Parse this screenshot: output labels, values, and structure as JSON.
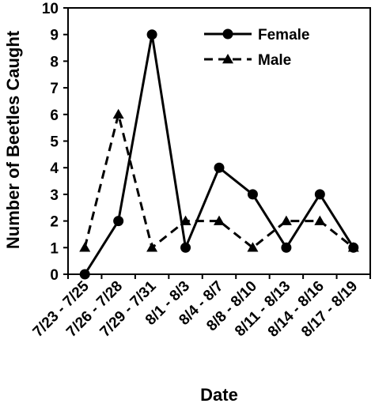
{
  "chart_data": {
    "type": "line",
    "title": "",
    "xlabel": "Date",
    "ylabel": "Number of Beetles Caught",
    "ylim": [
      0,
      10
    ],
    "yticks": [
      0,
      1,
      2,
      3,
      4,
      5,
      6,
      7,
      8,
      9,
      10
    ],
    "categories": [
      "7/23 - 7/25",
      "7/26 - 7/28",
      "7/29 - 7/31",
      "8/1 - 8/3",
      "8/4 - 8/7",
      "8/8 - 8/10",
      "8/11 - 8/13",
      "8/14 - 8/16",
      "8/17 - 8/19"
    ],
    "series": [
      {
        "name": "Female",
        "values": [
          0,
          2,
          9,
          1,
          4,
          3,
          1,
          3,
          1
        ],
        "line_style": "solid",
        "marker": "circle",
        "color": "#000000"
      },
      {
        "name": "Male",
        "values": [
          1,
          6,
          1,
          2,
          2,
          1,
          2,
          2,
          1
        ],
        "line_style": "dashed",
        "marker": "triangle",
        "color": "#000000"
      }
    ],
    "grid": false,
    "legend_position": "top-right"
  }
}
